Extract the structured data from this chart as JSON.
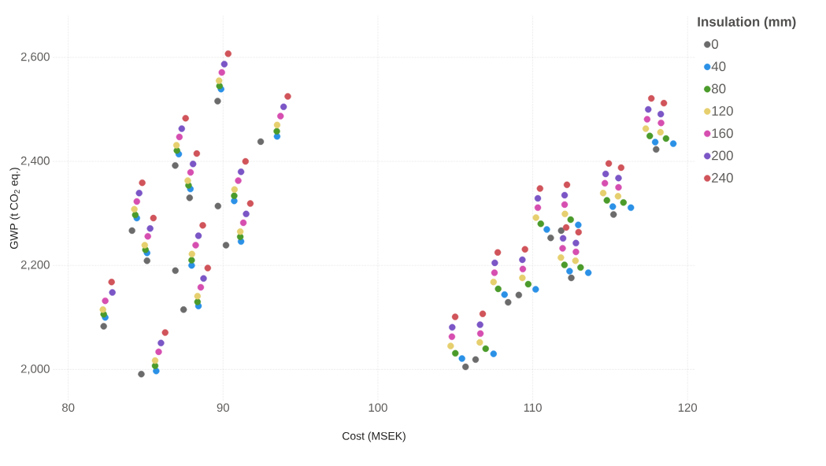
{
  "chart_data": {
    "type": "scatter",
    "xlabel": "Cost (MSEK)",
    "ylabel": "GWP (t CO$_{2}$ eq.)",
    "legend_title": "Insulation (mm)",
    "xlim": [
      79,
      120.5
    ],
    "ylim": [
      1940,
      2680
    ],
    "xticks": [
      80,
      90,
      100,
      110,
      120
    ],
    "yticks": [
      {
        "value": 2000,
        "label": "2,000"
      },
      {
        "value": 2200,
        "label": "2,200"
      },
      {
        "value": 2400,
        "label": "2,400"
      },
      {
        "value": 2600,
        "label": "2,600"
      }
    ],
    "grid": true,
    "legend": "right",
    "marker": "circle",
    "series": [
      {
        "name": "0",
        "color": "#6b6b6b",
        "x": [
          82.29,
          84.12,
          85.09,
          84.72,
          86.91,
          87.84,
          86.92,
          87.45,
          89.65,
          89.67,
          90.19,
          92.43,
          105.66,
          106.31,
          108.41,
          109.1,
          111.16,
          111.84,
          112.45,
          112.49,
          115.2,
          115.22,
          117.95,
          117.97
        ],
        "values": [
          2083,
          2267,
          2209,
          1991,
          2392,
          2330,
          2190,
          2115,
          2516,
          2314,
          2239,
          2438,
          2005,
          2019,
          2129,
          2143,
          2253,
          2267,
          null,
          2176,
          null,
          2298,
          null,
          2423
        ]
      },
      {
        "name": "40",
        "color": "#2b91e6",
        "x": [
          82.39,
          84.43,
          85.09,
          85.68,
          87.14,
          87.89,
          87.97,
          88.41,
          89.87,
          90.72,
          91.16,
          93.49,
          105.43,
          107.47,
          108.18,
          110.19,
          110.91,
          112.94,
          112.38,
          113.59,
          115.17,
          116.34,
          117.91,
          119.08
        ],
        "values": [
          2100,
          2291,
          2224,
          1997,
          2414,
          2347,
          2200,
          2122,
          2539,
          2324,
          2246,
          2448,
          2021,
          2030,
          2144,
          2154,
          2269,
          2278,
          2189,
          2186,
          2313,
          2311,
          2437,
          2434
        ]
      },
      {
        "name": "80",
        "color": "#4b9b2b",
        "x": [
          82.29,
          84.33,
          84.99,
          85.61,
          87.02,
          87.77,
          87.97,
          88.35,
          89.77,
          90.72,
          91.11,
          93.47,
          105.0,
          106.96,
          107.77,
          109.71,
          110.52,
          112.45,
          112.05,
          113.09,
          114.79,
          115.86,
          117.56,
          118.61
        ],
        "values": [
          2106,
          2297,
          2230,
          2007,
          2421,
          2354,
          2210,
          2130,
          2545,
          2334,
          2255,
          2458,
          2031,
          2040,
          2155,
          2164,
          2280,
          2288,
          2201,
          2196,
          2325,
          2321,
          2449,
          2444
        ]
      },
      {
        "name": "120",
        "color": "#e6cf6e",
        "x": [
          82.24,
          84.27,
          84.94,
          85.61,
          86.99,
          87.72,
          87.99,
          88.35,
          89.74,
          90.74,
          91.11,
          93.49,
          104.7,
          106.58,
          107.47,
          109.33,
          110.21,
          112.08,
          111.82,
          112.76,
          114.55,
          115.51,
          117.3,
          118.25
        ],
        "values": [
          2115,
          2308,
          2239,
          2017,
          2431,
          2363,
          2222,
          2141,
          2555,
          2346,
          2265,
          2470,
          2045,
          2052,
          2168,
          2176,
          2292,
          2299,
          2215,
          2209,
          2339,
          2333,
          2463,
          2456
        ]
      },
      {
        "name": "160",
        "color": "#d64fb0",
        "x": [
          82.39,
          84.43,
          85.14,
          85.84,
          87.18,
          87.9,
          88.23,
          88.56,
          89.92,
          90.98,
          91.31,
          93.71,
          104.78,
          106.62,
          107.53,
          109.36,
          110.33,
          112.06,
          111.93,
          112.79,
          114.66,
          115.54,
          117.39,
          118.29
        ],
        "values": [
          2132,
          2323,
          2256,
          2034,
          2447,
          2379,
          2239,
          2158,
          2571,
          2363,
          2282,
          2487,
          2063,
          2069,
          2186,
          2193,
          2311,
          2317,
          2233,
          2226,
          2358,
          2350,
          2481,
          2474
        ]
      },
      {
        "name": "200",
        "color": "#7b56c6",
        "x": [
          82.85,
          84.58,
          85.29,
          85.99,
          87.33,
          88.06,
          88.41,
          88.74,
          90.08,
          91.16,
          91.49,
          93.91,
          104.8,
          106.6,
          107.55,
          109.33,
          110.33,
          112.06,
          111.96,
          112.79,
          114.71,
          115.54,
          117.46,
          118.27
        ],
        "values": [
          2148,
          2339,
          2271,
          2051,
          2463,
          2395,
          2257,
          2175,
          2587,
          2380,
          2299,
          2505,
          2081,
          2086,
          2205,
          2211,
          2329,
          2335,
          2252,
          2243,
          2376,
          2368,
          2500,
          2491
        ]
      },
      {
        "name": "240",
        "color": "#d0545a",
        "x": [
          82.8,
          84.78,
          85.5,
          86.26,
          87.58,
          88.3,
          88.69,
          89.01,
          90.33,
          91.45,
          91.76,
          94.18,
          104.99,
          106.77,
          107.74,
          109.5,
          110.47,
          112.21,
          112.16,
          112.96,
          114.91,
          115.71,
          117.66,
          118.47
        ],
        "values": [
          2168,
          2359,
          2291,
          2071,
          2483,
          2415,
          2277,
          2195,
          2607,
          2400,
          2319,
          2525,
          2101,
          2107,
          2225,
          2231,
          2348,
          2355,
          2273,
          2264,
          2396,
          2388,
          2521,
          2512
        ]
      }
    ]
  }
}
